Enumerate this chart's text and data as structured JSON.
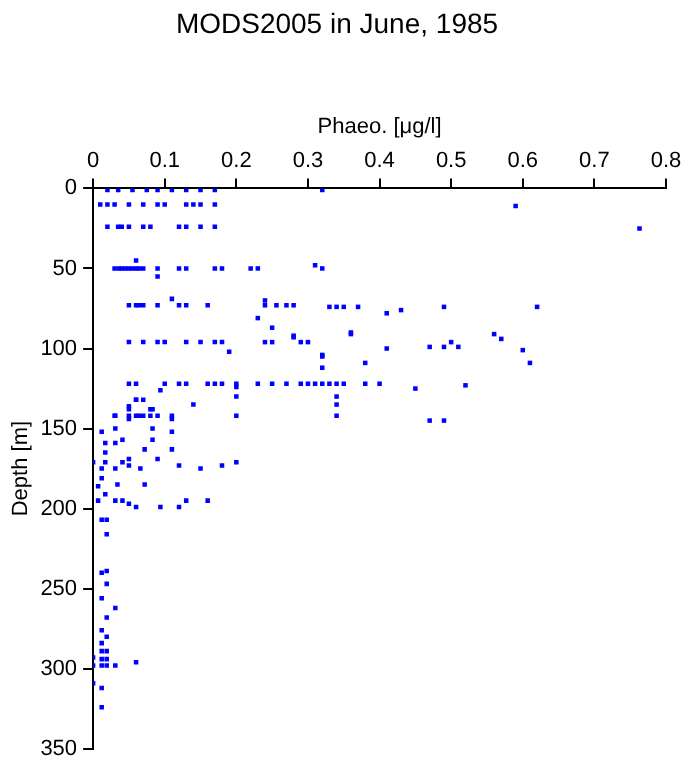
{
  "chart_data": {
    "type": "scatter",
    "title": "MODS2005 in June, 1985",
    "xlabel": "Phaeo. [μg/l]",
    "ylabel": "Depth [m]",
    "xlim": [
      0,
      0.8
    ],
    "xticks": [
      0,
      0.1,
      0.2,
      0.3,
      0.4,
      0.5,
      0.6,
      0.7,
      0.8
    ],
    "ylim": [
      350,
      0
    ],
    "yticks": [
      0,
      50,
      100,
      150,
      200,
      250,
      300,
      350
    ],
    "grid": false,
    "legend": false,
    "marker": "square",
    "series": [
      {
        "color": "#0000ff",
        "x": [
          0.02,
          0.035,
          0.055,
          0.075,
          0.09,
          0.11,
          0.13,
          0.15,
          0.17,
          0.32,
          0.01,
          0.02,
          0.03,
          0.05,
          0.07,
          0.09,
          0.1,
          0.13,
          0.14,
          0.15,
          0.17,
          0.59,
          0.02,
          0.035,
          0.04,
          0.05,
          0.07,
          0.08,
          0.12,
          0.13,
          0.15,
          0.17,
          0.763,
          0.03,
          0.036,
          0.04,
          0.045,
          0.05,
          0.055,
          0.06,
          0.064,
          0.07,
          0.09,
          0.12,
          0.13,
          0.17,
          0.18,
          0.22,
          0.23,
          0.31,
          0.32,
          0.06,
          0.09,
          0.05,
          0.06,
          0.064,
          0.07,
          0.09,
          0.12,
          0.13,
          0.16,
          0.24,
          0.256,
          0.27,
          0.28,
          0.11,
          0.24,
          0.23,
          0.25,
          0.28,
          0.33,
          0.34,
          0.35,
          0.37,
          0.49,
          0.62,
          0.41,
          0.43,
          0.05,
          0.07,
          0.09,
          0.1,
          0.13,
          0.15,
          0.17,
          0.18,
          0.24,
          0.25,
          0.29,
          0.3,
          0.19,
          0.28,
          0.32,
          0.36,
          0.36,
          0.41,
          0.47,
          0.49,
          0.5,
          0.51,
          0.56,
          0.57,
          0.6,
          0.61,
          0.32,
          0.38,
          0.05,
          0.06,
          0.1,
          0.12,
          0.13,
          0.16,
          0.17,
          0.18,
          0.2,
          0.23,
          0.25,
          0.27,
          0.29,
          0.3,
          0.31,
          0.32,
          0.33,
          0.34,
          0.35,
          0.38,
          0.4,
          0.32,
          0.34,
          0.34,
          0.2,
          0.2,
          0.14,
          0.45,
          0.52,
          0.03,
          0.05,
          0.06,
          0.07,
          0.08,
          0.09,
          0.11,
          0.2,
          0.34,
          0.06,
          0.07,
          0.05,
          0.08,
          0.47,
          0.49,
          0,
          0.012,
          0.017,
          0.017,
          0.017,
          0.012,
          0.012,
          0.007,
          0.007,
          0.017,
          0.031,
          0.031,
          0.031,
          0.031,
          0.034,
          0.031,
          0.041,
          0.041,
          0.041,
          0.05,
          0.05,
          0.05,
          0.05,
          0.05,
          0.06,
          0.064,
          0.06,
          0.066,
          0.072,
          0.072,
          0.083,
          0.083,
          0.083,
          0.09,
          0.11,
          0.11,
          0.11,
          0.12,
          0.094,
          0.12,
          0.13,
          0.15,
          0.16,
          0.18,
          0.2,
          0.094,
          0.012,
          0.019,
          0.019,
          0.012,
          0.019,
          0.019,
          0.012,
          0.019,
          0.031,
          0.012,
          0.019,
          0.012,
          0.012,
          0.019,
          0.012,
          0.019,
          0,
          0,
          0.012,
          0.019,
          0.031,
          0.06,
          0,
          0.012,
          0.012
        ],
        "values": [
          1,
          1,
          1,
          1,
          1,
          1,
          1,
          1,
          1,
          1,
          10,
          10,
          10,
          10,
          10,
          10,
          10,
          10,
          10,
          10,
          10,
          11,
          24,
          24,
          24,
          24,
          24,
          24,
          24,
          24,
          24,
          24,
          25,
          50,
          50,
          50,
          50,
          50,
          50,
          50,
          50,
          50,
          50,
          50,
          50,
          50,
          50,
          50,
          50,
          48,
          50,
          45,
          55,
          73,
          73,
          73,
          73,
          73,
          73,
          73,
          73,
          73,
          73,
          73,
          73,
          69,
          70,
          81,
          87,
          92,
          74,
          74,
          74,
          74,
          74,
          74,
          78,
          76,
          96,
          96,
          96,
          96,
          96,
          96,
          96,
          96,
          96,
          96,
          96,
          96,
          102,
          93,
          104,
          90,
          91,
          100,
          99,
          99,
          96,
          99,
          91,
          94,
          101,
          109,
          105,
          109,
          122,
          122,
          122,
          122,
          122,
          122,
          122,
          122,
          122,
          122,
          122,
          122,
          122,
          122,
          122,
          122,
          122,
          122,
          122,
          122,
          122,
          112,
          130,
          135,
          124,
          130,
          135,
          125,
          123,
          142,
          142,
          142,
          142,
          142,
          142,
          142,
          142,
          142,
          132,
          132,
          138,
          138,
          145,
          145,
          171,
          152,
          159,
          165,
          171,
          181,
          175,
          186,
          195,
          191,
          142,
          150,
          159,
          175,
          185,
          195,
          157,
          171,
          195,
          136,
          144,
          169,
          173,
          197,
          132,
          142,
          199,
          175,
          163,
          185,
          150,
          138,
          157,
          169,
          144,
          152,
          163,
          173,
          199,
          199,
          195,
          175,
          195,
          173,
          171,
          126,
          207,
          207,
          216,
          240,
          239,
          247,
          256,
          268,
          262,
          276,
          280,
          284,
          289,
          289,
          294,
          294,
          293,
          298,
          298,
          298,
          298,
          296,
          309,
          312,
          324
        ]
      }
    ]
  }
}
